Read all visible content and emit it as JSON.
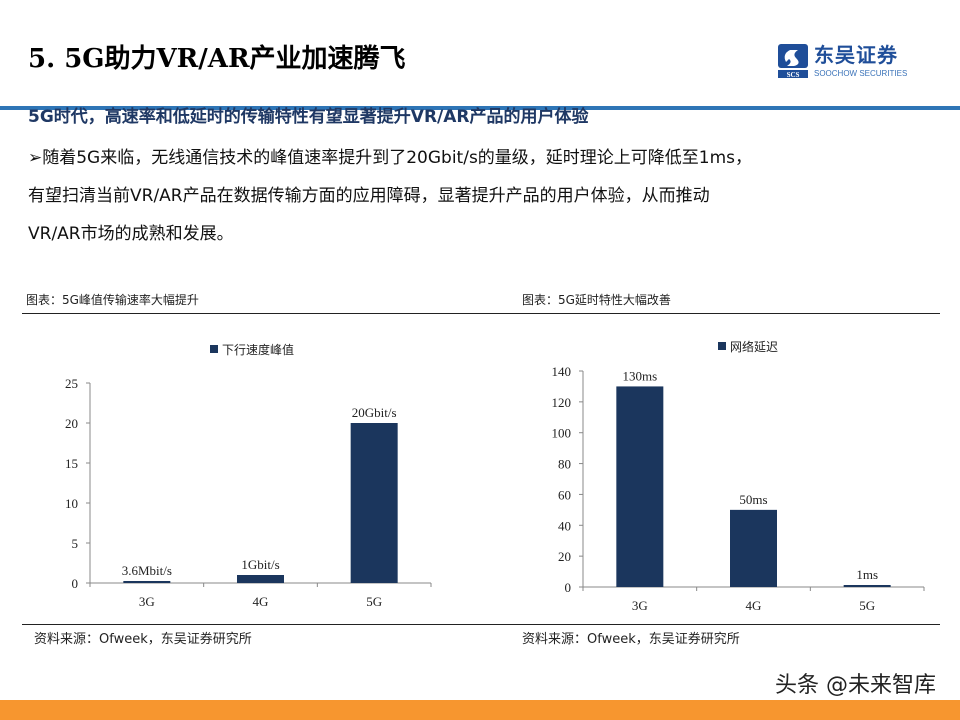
{
  "slide": {
    "title": "5. 5G助力VR/AR产业加速腾飞",
    "logo": {
      "cn": "东吴证券",
      "en": "SOOCHOW SECURITIES",
      "abbr": "SCS"
    },
    "heading": "5G时代，高速率和低延时的传输特性有望显著提升VR/AR产品的用户体验",
    "body_lines": [
      "➢随着5G来临，无线通信技术的峰值速率提升到了20Gbit/s的量级，延时理论上可降低至1ms，",
      "有望扫清当前VR/AR产品在数据传输方面的应用障碍，显著提升产品的用户体验，从而推动",
      "VR/AR市场的成熟和发展。"
    ],
    "captions": [
      "图表：5G峰值传输速率大幅提升",
      "图表：5G延时特性大幅改善"
    ],
    "sources": [
      "资料来源：Ofweek，东吴证券研究所",
      "资料来源：Ofweek，东吴证券研究所"
    ],
    "watermark": "头条 @未来智库",
    "colors": {
      "accent": "#2e75b6",
      "heading": "#1f3864",
      "bar": "#1b365d",
      "footer": "#f7962f"
    }
  },
  "chart_data": [
    {
      "type": "bar",
      "categories": [
        "3G",
        "4G",
        "5G"
      ],
      "series": [
        {
          "name": "下行速度峰值",
          "values": [
            0.0036,
            1,
            20
          ]
        }
      ],
      "data_labels": [
        "3.6Mbit/s",
        "1Gbit/s",
        "20Gbit/s"
      ],
      "yticks": [
        "0",
        "5",
        "10",
        "15",
        "20",
        "25"
      ],
      "ylim": [
        0,
        25
      ],
      "legend": "top",
      "grid": false
    },
    {
      "type": "bar",
      "categories": [
        "3G",
        "4G",
        "5G"
      ],
      "series": [
        {
          "name": "网络延迟",
          "values": [
            130,
            50,
            1
          ]
        }
      ],
      "data_labels": [
        "130ms",
        "50ms",
        "1ms"
      ],
      "yticks": [
        "0",
        "20",
        "40",
        "60",
        "80",
        "100",
        "120",
        "140"
      ],
      "ylim": [
        0,
        140
      ],
      "legend": "top",
      "grid": false
    }
  ]
}
